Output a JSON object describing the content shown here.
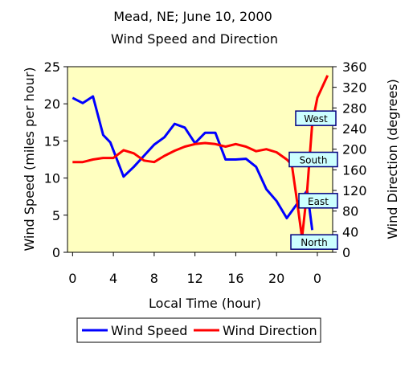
{
  "chart_data": {
    "type": "line",
    "title": "Mead, NE; June 10, 2000",
    "subtitle": "Wind Speed and Direction",
    "xlabel": "Local Time (hour)",
    "ylabel": "Wind Speed (miles per hour)",
    "y2label": "Wind Direction (degrees)",
    "x_ticks": [
      "0",
      "4",
      "8",
      "12",
      "16",
      "20",
      "0"
    ],
    "xlim": [
      -0.5,
      25.5
    ],
    "ylim": [
      0,
      25
    ],
    "y_ticks": [
      "0",
      "5",
      "10",
      "15",
      "20",
      "25"
    ],
    "y2lim": [
      0,
      360
    ],
    "y2_ticks": [
      "0",
      "40",
      "80",
      "120",
      "160",
      "200",
      "240",
      "280",
      "320",
      "360"
    ],
    "grid": false,
    "plot_background": "#ffffc0",
    "legend_position": "bottom",
    "series": [
      {
        "name": "Wind Speed",
        "axis": "left",
        "color": "#0000ff",
        "x": [
          0,
          1,
          2,
          3,
          3.7,
          5,
          6,
          7,
          8,
          9,
          10,
          11,
          12,
          13,
          14,
          15,
          16,
          17,
          18,
          19,
          20,
          21,
          22,
          23,
          23.5
        ],
        "y": [
          20.8,
          20.1,
          21.0,
          15.8,
          14.8,
          10.2,
          11.5,
          13.0,
          14.5,
          15.5,
          17.3,
          16.8,
          14.7,
          16.1,
          16.1,
          12.5,
          12.5,
          12.6,
          11.5,
          8.5,
          6.9,
          4.6,
          6.5,
          8.3,
          3.0
        ]
      },
      {
        "name": "Wind Direction",
        "axis": "right",
        "color": "#ff0000",
        "x": [
          0,
          1,
          2,
          3,
          4,
          5,
          6,
          7,
          8,
          9,
          10,
          11,
          12,
          13,
          14,
          15,
          16,
          17,
          18,
          19,
          20,
          21,
          21.5,
          22,
          22.5,
          23,
          23.5,
          24,
          25
        ],
        "y": [
          175,
          175,
          180,
          183,
          183,
          198,
          192,
          178,
          175,
          187,
          197,
          205,
          210,
          212,
          210,
          205,
          210,
          205,
          196,
          200,
          194,
          180,
          170,
          100,
          28,
          120,
          250,
          300,
          343
        ]
      }
    ],
    "annotations": [
      {
        "text": "West",
        "y2": 260
      },
      {
        "text": "South",
        "y2": 180
      },
      {
        "text": "East",
        "y2": 100
      },
      {
        "text": "North",
        "y2": 20
      }
    ]
  }
}
